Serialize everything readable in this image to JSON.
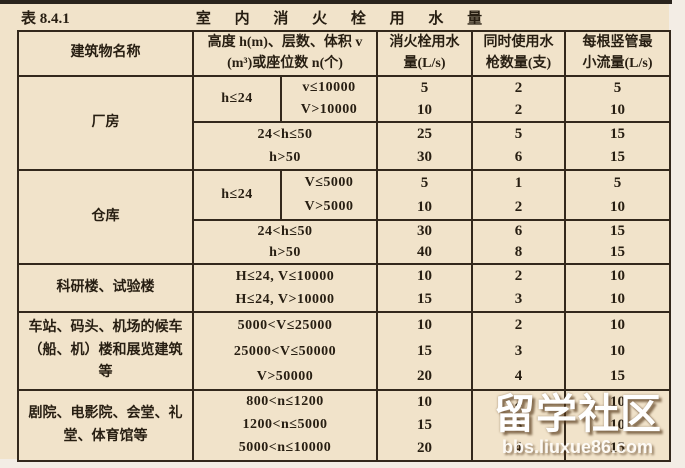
{
  "page": {
    "caption": "表 8.4.1",
    "title": "室 内 消 火 栓 用 水 量",
    "colors": {
      "table_background": "#f1e3ca",
      "border": "#33281c",
      "text": "#271e12",
      "top_bar": "#2a241d",
      "watermark": "#ffffff"
    },
    "watermark": {
      "title": "留学社区",
      "site": "bbs.liuxue86.com"
    }
  },
  "table": {
    "header": {
      "building": "建筑物名称",
      "spec_l1": "高度 h(m)、层数、体积 v",
      "spec_l2": "(m³)或座位数 n(个)",
      "flow_l1": "消火栓用水",
      "flow_l2": "量(L/s)",
      "guns_l1": "同时使用水",
      "guns_l2": "枪数量(支)",
      "riser_l1": "每根竖管最",
      "riser_l2": "小流量(L/s)"
    },
    "sections": [
      {
        "name_lines": [
          "厂房"
        ],
        "h_group_label": "h≤24",
        "rows": [
          {
            "cond": "v≤10000",
            "flow": "5",
            "guns": "2",
            "riser": "5"
          },
          {
            "cond": "V>10000",
            "flow": "10",
            "guns": "2",
            "riser": "10"
          },
          {
            "cond": "24<h≤50",
            "flow": "25",
            "guns": "5",
            "riser": "15"
          },
          {
            "cond": "h>50",
            "flow": "30",
            "guns": "6",
            "riser": "15"
          }
        ]
      },
      {
        "name_lines": [
          "仓库"
        ],
        "h_group_label": "h≤24",
        "rows": [
          {
            "cond": "V≤5000",
            "flow": "5",
            "guns": "1",
            "riser": "5"
          },
          {
            "cond": "V>5000",
            "flow": "10",
            "guns": "2",
            "riser": "10"
          },
          {
            "cond": "24<h≤50",
            "flow": "30",
            "guns": "6",
            "riser": "15"
          },
          {
            "cond": "h>50",
            "flow": "40",
            "guns": "8",
            "riser": "15"
          }
        ]
      },
      {
        "name_lines": [
          "科研楼、试验楼"
        ],
        "rows": [
          {
            "cond": "H≤24, V≤10000",
            "flow": "10",
            "guns": "2",
            "riser": "10"
          },
          {
            "cond": "H≤24, V>10000",
            "flow": "15",
            "guns": "3",
            "riser": "10"
          }
        ]
      },
      {
        "name_lines": [
          "车站、码头、机场的候车",
          "（船、机）楼和展览建筑",
          "等"
        ],
        "rows": [
          {
            "cond": "5000<V≤25000",
            "flow": "10",
            "guns": "2",
            "riser": "10"
          },
          {
            "cond": "25000<V≤50000",
            "flow": "15",
            "guns": "3",
            "riser": "10"
          },
          {
            "cond": "V>50000",
            "flow": "20",
            "guns": "4",
            "riser": "15"
          }
        ]
      },
      {
        "name_lines": [
          "剧院、电影院、会堂、礼",
          "堂、体育馆等"
        ],
        "rows": [
          {
            "cond": "800<n≤1200",
            "flow": "10",
            "guns": "2",
            "riser": "10"
          },
          {
            "cond": "1200<n≤5000",
            "flow": "15",
            "guns": "3",
            "riser": "10"
          },
          {
            "cond": "5000<n≤10000",
            "flow": "20",
            "guns": "4",
            "riser": "15"
          }
        ]
      }
    ]
  }
}
